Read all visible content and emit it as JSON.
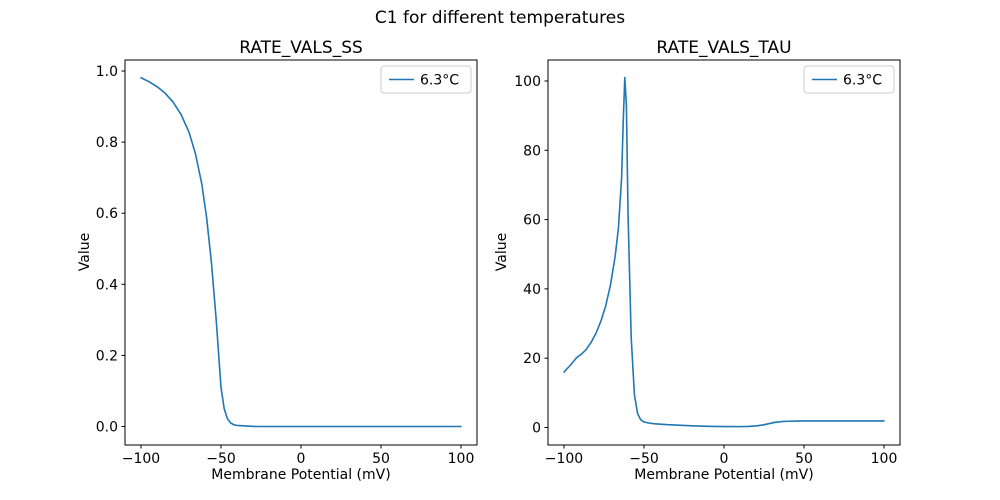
{
  "figure": {
    "title": "C1 for different temperatures",
    "background_color": "#ffffff",
    "text_color": "#000000"
  },
  "chart_data": [
    {
      "type": "line",
      "title": "RATE_VALS_SS",
      "xlabel": "Membrane Potential (mV)",
      "ylabel": "Value",
      "xlim": [
        -110,
        110
      ],
      "ylim": [
        -0.052,
        1.031
      ],
      "grid": false,
      "legend_position": "upper right",
      "xticks": {
        "values": [
          -100,
          -50,
          0,
          50,
          100
        ],
        "labels": [
          "−100",
          "−50",
          "0",
          "50",
          "100"
        ]
      },
      "yticks": {
        "values": [
          0.0,
          0.2,
          0.4,
          0.6,
          0.8,
          1.0
        ],
        "labels": [
          "0.0",
          "0.2",
          "0.4",
          "0.6",
          "0.8",
          "1.0"
        ]
      },
      "series": [
        {
          "name": "6.3°C",
          "color": "#1f77b4",
          "x": [
            -100,
            -95,
            -90,
            -85,
            -80,
            -75,
            -70,
            -66,
            -62,
            -59,
            -56,
            -53,
            -50,
            -48,
            -46,
            -44,
            -42,
            -40,
            -36,
            -32,
            -28,
            -24,
            -20,
            -15,
            -10,
            -5,
            0,
            10,
            20,
            30,
            40,
            50,
            60,
            70,
            80,
            90,
            100
          ],
          "y": [
            0.981,
            0.97,
            0.956,
            0.938,
            0.913,
            0.878,
            0.828,
            0.768,
            0.682,
            0.588,
            0.462,
            0.3,
            0.11,
            0.05,
            0.022,
            0.01,
            0.005,
            0.003,
            0.002,
            0.001,
            0.0,
            0.0,
            0.0,
            0.0,
            0.0,
            0.0,
            0.0,
            0.0,
            0.0,
            0.0,
            0.0,
            0.0,
            0.0,
            0.0,
            0.0,
            0.0,
            0.0
          ]
        }
      ]
    },
    {
      "type": "line",
      "title": "RATE_VALS_TAU",
      "xlabel": "Membrane Potential (mV)",
      "ylabel": "Value",
      "xlim": [
        -110,
        110
      ],
      "ylim": [
        -5.05,
        106.05
      ],
      "grid": false,
      "legend_position": "upper right",
      "xticks": {
        "values": [
          -100,
          -50,
          0,
          50,
          100
        ],
        "labels": [
          "−100",
          "−50",
          "0",
          "50",
          "100"
        ]
      },
      "yticks": {
        "values": [
          0,
          20,
          40,
          60,
          80,
          100
        ],
        "labels": [
          "0",
          "20",
          "40",
          "60",
          "80",
          "100"
        ]
      },
      "series": [
        {
          "name": "6.3°C",
          "color": "#1f77b4",
          "x": [
            -100,
            -96,
            -92,
            -89,
            -86,
            -83,
            -80,
            -77,
            -74,
            -71,
            -68,
            -66,
            -64,
            -63,
            -62,
            -61,
            -60,
            -58,
            -56,
            -54,
            -52,
            -50,
            -47,
            -44,
            -40,
            -35,
            -30,
            -25,
            -20,
            -15,
            -10,
            -5,
            0,
            5,
            10,
            15,
            20,
            24,
            28,
            32,
            36,
            40,
            45,
            50,
            60,
            70,
            80,
            90,
            100
          ],
          "y": [
            16.0,
            18.0,
            20.2,
            21.2,
            22.6,
            24.6,
            27.2,
            30.6,
            35.0,
            41.0,
            49.5,
            57.5,
            72.0,
            88.0,
            101.0,
            93.0,
            62.0,
            26.0,
            9.5,
            4.0,
            2.2,
            1.6,
            1.3,
            1.1,
            0.95,
            0.8,
            0.7,
            0.6,
            0.5,
            0.4,
            0.35,
            0.3,
            0.28,
            0.26,
            0.25,
            0.3,
            0.45,
            0.7,
            1.1,
            1.5,
            1.7,
            1.8,
            1.85,
            1.9,
            1.9,
            1.9,
            1.9,
            1.9,
            1.9
          ]
        }
      ]
    }
  ]
}
